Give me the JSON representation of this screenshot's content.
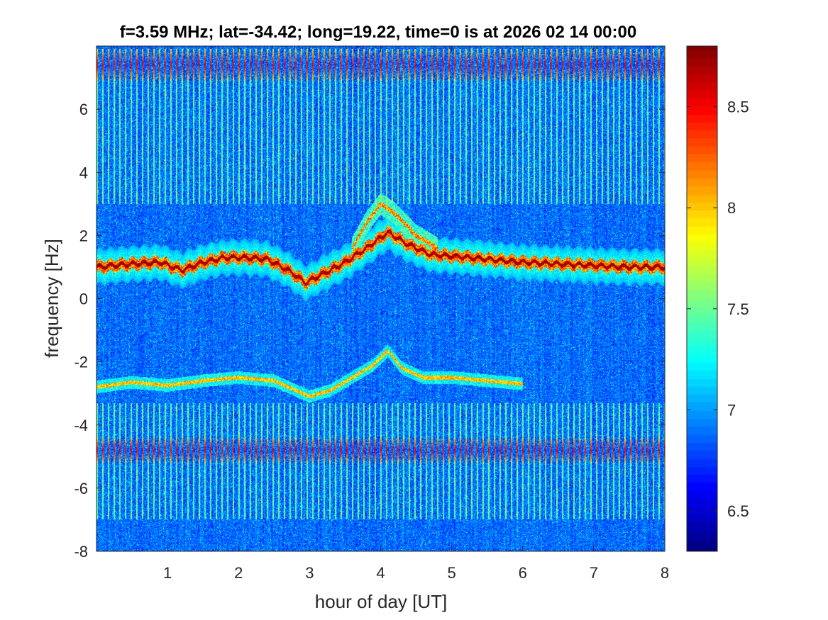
{
  "chart_data": {
    "type": "heatmap",
    "title": "f=3.59 MHz;  lat=-34.42; long=19.22, time=0 is at 2026 02 14 00:00",
    "xlabel": "hour of day [UT]",
    "ylabel": "frequency [Hz]",
    "xlim": [
      0,
      8
    ],
    "ylim": [
      -8,
      8
    ],
    "xticks": [
      1,
      2,
      3,
      4,
      5,
      6,
      7,
      8
    ],
    "yticks": [
      -8,
      -6,
      -4,
      -2,
      0,
      2,
      4,
      6
    ],
    "colormap": "jet",
    "colorbar": {
      "range": [
        6.3,
        8.8
      ],
      "ticks": [
        6.5,
        7,
        7.5,
        8,
        8.5
      ]
    },
    "features": {
      "main_trace": {
        "x": [
          0,
          0.5,
          0.9,
          1.2,
          1.5,
          1.8,
          2.1,
          2.4,
          2.7,
          2.95,
          3.2,
          3.5,
          3.8,
          4.1,
          4.4,
          4.7,
          5.0,
          5.5,
          6.0,
          6.5,
          7.0,
          7.5,
          8.0
        ],
        "y": [
          1.0,
          1.1,
          1.15,
          0.9,
          1.15,
          1.3,
          1.3,
          1.25,
          0.9,
          0.5,
          0.8,
          1.15,
          1.6,
          2.1,
          1.7,
          1.4,
          1.35,
          1.25,
          1.15,
          1.1,
          1.05,
          1.0,
          1.0
        ]
      },
      "upper_branch": {
        "x": [
          3.6,
          3.8,
          4.0,
          4.2,
          4.5,
          4.8
        ],
        "y": [
          1.6,
          2.4,
          3.0,
          2.7,
          2.0,
          1.6
        ]
      },
      "negative_trace": {
        "x": [
          0,
          0.5,
          1.0,
          1.5,
          2.0,
          2.5,
          3.0,
          3.3,
          3.6,
          3.9,
          4.1,
          4.3,
          4.6,
          5.0,
          5.5,
          6.0
        ],
        "y": [
          -2.8,
          -2.65,
          -2.75,
          -2.6,
          -2.5,
          -2.6,
          -3.1,
          -2.9,
          -2.5,
          -2.1,
          -1.65,
          -2.2,
          -2.5,
          -2.5,
          -2.6,
          -2.7
        ]
      },
      "interference_bands": [
        {
          "ymin": 6.9,
          "ymax": 7.9
        },
        {
          "ymin": -5.2,
          "ymax": -4.4
        }
      ]
    }
  }
}
